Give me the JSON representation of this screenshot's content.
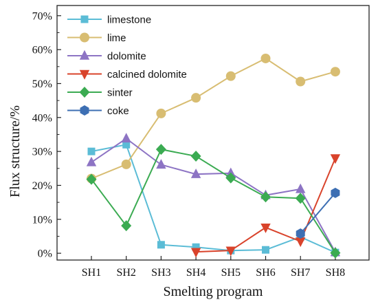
{
  "chart_data": {
    "type": "line",
    "title": "",
    "xlabel": "Smelting program",
    "ylabel": "Flux structure/%",
    "categories": [
      "SH1",
      "SH2",
      "SH3",
      "SH4",
      "SH5",
      "SH6",
      "SH7",
      "SH8"
    ],
    "ylim": [
      -2,
      73
    ],
    "yticks": [
      0,
      10,
      20,
      30,
      40,
      50,
      60,
      70
    ],
    "ytick_labels": [
      "0%",
      "10%",
      "20%",
      "30%",
      "40%",
      "50%",
      "60%",
      "70%"
    ],
    "grid": false,
    "legend_position": "top-left",
    "series": [
      {
        "name": "limestone",
        "color": "#5bbcd6",
        "marker": "square",
        "values": [
          30,
          32,
          2.5,
          1.8,
          0.8,
          1,
          4.8,
          0.2
        ]
      },
      {
        "name": "lime",
        "color": "#d8bd72",
        "marker": "circle",
        "values": [
          22,
          26.2,
          41.2,
          45.8,
          52.2,
          57.4,
          50.6,
          53.5
        ]
      },
      {
        "name": "dolomite",
        "color": "#8d74c4",
        "marker": "triangle-up",
        "values": [
          26.8,
          33.8,
          26.1,
          23.3,
          23.6,
          17.1,
          18.9,
          0.3
        ]
      },
      {
        "name": "calcined dolomite",
        "color": "#d9432b",
        "marker": "triangle-down",
        "values": [
          null,
          null,
          null,
          0.4,
          0.8,
          7.6,
          3.5,
          28
        ]
      },
      {
        "name": "sinter",
        "color": "#3bab52",
        "marker": "diamond",
        "values": [
          21.8,
          8.1,
          30.6,
          28.6,
          22.2,
          16.6,
          16.2,
          0.1
        ]
      },
      {
        "name": "coke",
        "color": "#3d6fb3",
        "marker": "hexagon",
        "values": [
          null,
          null,
          null,
          null,
          null,
          null,
          5.8,
          17.8
        ]
      }
    ]
  }
}
